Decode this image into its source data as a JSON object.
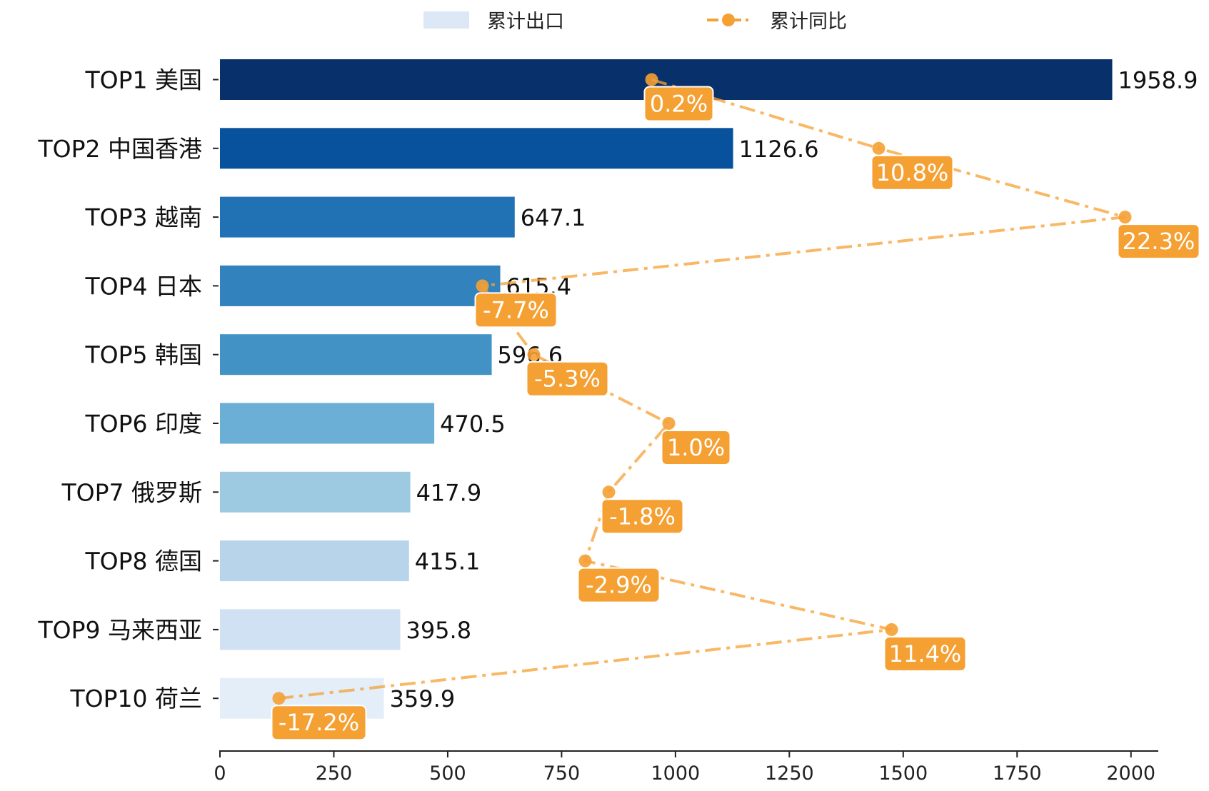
{
  "chart_data": {
    "type": "bar",
    "orientation": "horizontal",
    "categories": [
      "TOP1 美国",
      "TOP2 中国香港",
      "TOP3 越南",
      "TOP4 日本",
      "TOP5 韩国",
      "TOP6 印度",
      "TOP7 俄罗斯",
      "TOP8 德国",
      "TOP9 马来西亚",
      "TOP10 荷兰"
    ],
    "series": [
      {
        "name": "累计出口",
        "type": "bar",
        "values": [
          1958.9,
          1126.6,
          647.1,
          615.4,
          596.6,
          470.5,
          417.9,
          415.1,
          395.8,
          359.9
        ],
        "value_labels": [
          "1958.9",
          "1126.6",
          "647.1",
          "615.4",
          "596.6",
          "470.5",
          "417.9",
          "415.1",
          "395.8",
          "359.9"
        ],
        "colors": [
          "#08306b",
          "#08519c",
          "#2171b5",
          "#3182bd",
          "#4292c6",
          "#6baed6",
          "#9ecae1",
          "#b7d4ea",
          "#cfe1f2",
          "#e3eef9"
        ]
      },
      {
        "name": "累计同比",
        "type": "line",
        "values": [
          0.2,
          10.8,
          22.3,
          -7.7,
          -5.3,
          1.0,
          -1.8,
          -2.9,
          11.4,
          -17.2
        ],
        "value_labels": [
          "0.2%",
          "10.8%",
          "22.3%",
          "-7.7%",
          "-5.3%",
          "1.0%",
          "-1.8%",
          "-2.9%",
          "11.4%",
          "-17.2%"
        ],
        "xlim": [
          -19.95,
          23.85
        ],
        "color": "#f5a033",
        "line_style": "dash-dot",
        "marker": "circle"
      }
    ],
    "xlim": [
      0,
      2060
    ],
    "xticks": [
      0,
      250,
      500,
      750,
      1000,
      1250,
      1500,
      1750,
      2000
    ],
    "xtick_labels": [
      "0",
      "250",
      "500",
      "750",
      "1000",
      "1250",
      "1500",
      "1750",
      "2000"
    ],
    "grid": false,
    "legend": {
      "position": "top-center",
      "items": [
        {
          "label": "累计出口",
          "marker": "rect",
          "color": "#dde8f6"
        },
        {
          "label": "累计同比",
          "marker": "line-circle",
          "color": "#f5a033"
        }
      ]
    },
    "title": "",
    "xlabel": "",
    "ylabel": ""
  }
}
